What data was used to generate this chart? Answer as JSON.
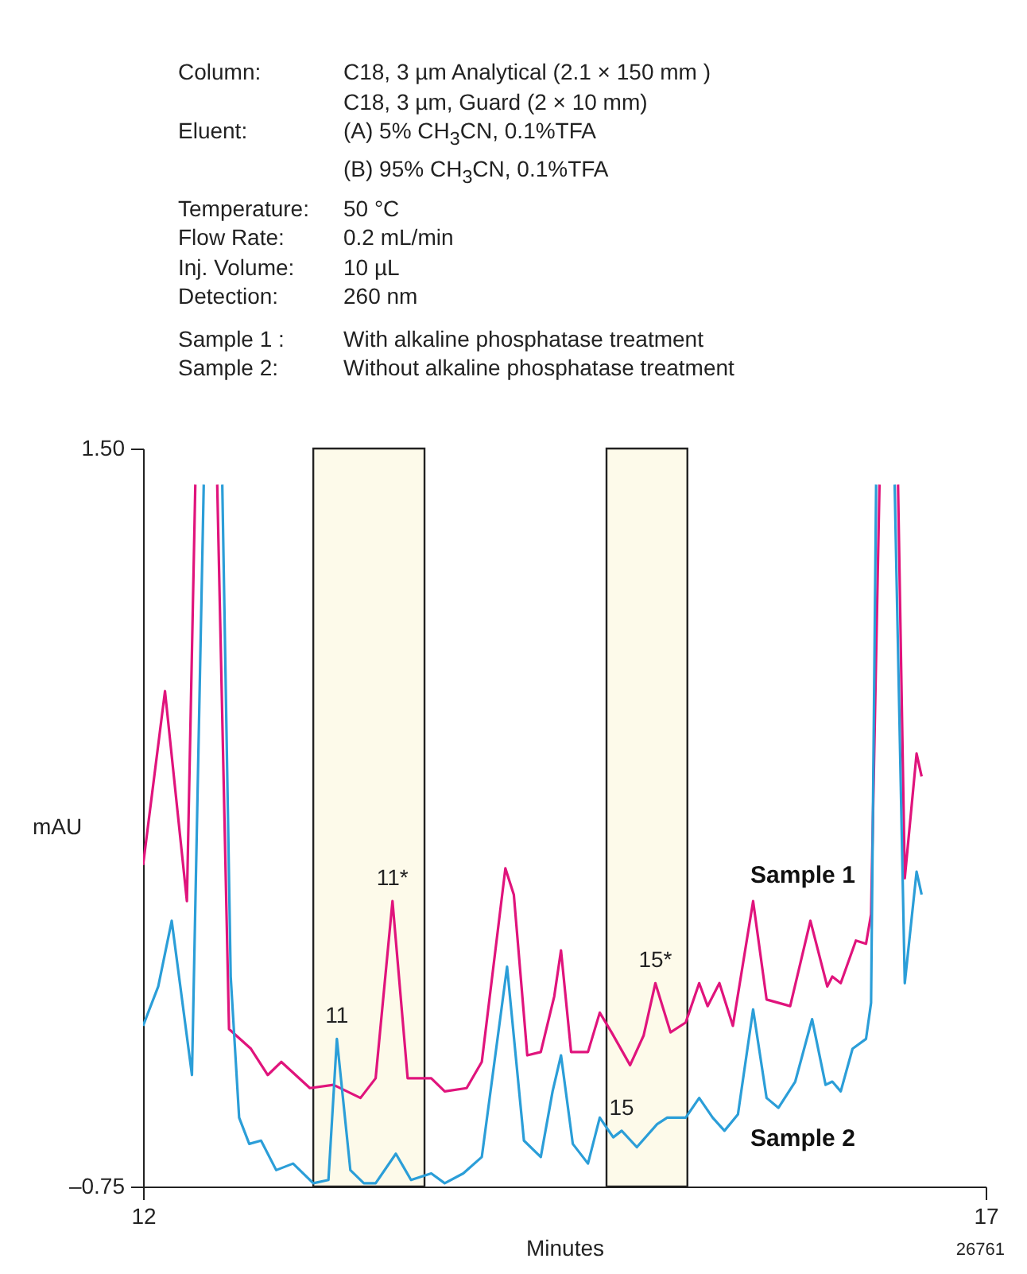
{
  "chart_data": {
    "type": "line",
    "xlabel": "Minutes",
    "ylabel": "mAU",
    "xlim": [
      12,
      17
    ],
    "xticks": [
      12,
      17
    ],
    "ylim": [
      -0.75,
      1.5
    ],
    "yticks": [
      {
        "value": -0.75,
        "label": "–0.75"
      },
      {
        "value": 1.5,
        "label": "1.50"
      }
    ],
    "grid": false,
    "legend": false,
    "marker": "none",
    "line_style": "solid",
    "series": [
      {
        "name": "Sample 1",
        "color": "#e0147c",
        "x": [
          12.0,
          12.13,
          12.26,
          12.31,
          12.37,
          12.44,
          12.51,
          12.64,
          12.74,
          12.82,
          12.99,
          13.13,
          13.29,
          13.38,
          13.48,
          13.57,
          13.71,
          13.79,
          13.92,
          14.01,
          14.15,
          14.2,
          14.28,
          14.36,
          14.44,
          14.48,
          14.54,
          14.64,
          14.71,
          14.78,
          14.89,
          14.97,
          15.04,
          15.13,
          15.22,
          15.3,
          15.35,
          15.42,
          15.5,
          15.62,
          15.7,
          15.84,
          15.96,
          16.06,
          16.09,
          16.14,
          16.23,
          16.29,
          16.32,
          16.37,
          16.42,
          16.48,
          16.52,
          16.59,
          16.62
        ],
        "values": [
          0.23,
          0.76,
          0.12,
          1.39,
          null,
          1.39,
          -0.27,
          -0.33,
          -0.41,
          -0.37,
          -0.45,
          -0.44,
          -0.48,
          -0.42,
          0.12,
          -0.42,
          -0.42,
          -0.46,
          -0.45,
          -0.37,
          0.22,
          0.14,
          -0.35,
          -0.34,
          -0.17,
          -0.03,
          -0.34,
          -0.34,
          -0.22,
          -0.28,
          -0.38,
          -0.29,
          -0.13,
          -0.28,
          -0.25,
          -0.13,
          -0.2,
          -0.13,
          -0.26,
          0.12,
          -0.18,
          -0.2,
          0.06,
          -0.14,
          -0.11,
          -0.13,
          0.0,
          -0.01,
          0.08,
          1.39,
          null,
          1.39,
          0.19,
          0.57,
          0.5
        ]
      },
      {
        "name": "Sample 2",
        "color": "#2b9ed8",
        "x": [
          12.0,
          12.09,
          12.17,
          12.29,
          12.36,
          12.41,
          12.47,
          12.52,
          12.57,
          12.63,
          12.7,
          12.79,
          12.89,
          13.01,
          13.1,
          13.15,
          13.23,
          13.31,
          13.38,
          13.5,
          13.59,
          13.71,
          13.79,
          13.9,
          14.01,
          14.16,
          14.26,
          14.36,
          14.43,
          14.48,
          14.55,
          14.64,
          14.71,
          14.79,
          14.84,
          14.93,
          15.05,
          15.11,
          15.22,
          15.3,
          15.38,
          15.45,
          15.53,
          15.62,
          15.7,
          15.77,
          15.87,
          15.97,
          16.05,
          16.09,
          16.14,
          16.21,
          16.29,
          16.32,
          16.35,
          16.41,
          16.46,
          16.52,
          16.59,
          16.62
        ],
        "values": [
          -0.26,
          -0.14,
          0.06,
          -0.41,
          1.39,
          null,
          1.39,
          -0.11,
          -0.54,
          -0.62,
          -0.61,
          -0.7,
          -0.68,
          -0.74,
          -0.73,
          -0.3,
          -0.7,
          -0.74,
          -0.74,
          -0.65,
          -0.73,
          -0.71,
          -0.74,
          -0.71,
          -0.66,
          -0.08,
          -0.61,
          -0.66,
          -0.46,
          -0.35,
          -0.62,
          -0.68,
          -0.54,
          -0.6,
          -0.58,
          -0.63,
          -0.56,
          -0.54,
          -0.54,
          -0.48,
          -0.54,
          -0.58,
          -0.53,
          -0.21,
          -0.48,
          -0.51,
          -0.43,
          -0.24,
          -0.44,
          -0.43,
          -0.46,
          -0.33,
          -0.3,
          -0.19,
          1.39,
          null,
          1.39,
          -0.13,
          0.21,
          0.14
        ]
      }
    ],
    "bands": [
      {
        "axis": "x",
        "from": 13.01,
        "to": 13.67,
        "color": "#fdfaea"
      },
      {
        "axis": "x",
        "from": 14.75,
        "to": 15.23,
        "color": "#fdfaea"
      }
    ],
    "annotations": [
      {
        "text": "11",
        "x": 13.15,
        "y": -0.3
      },
      {
        "text": "11*",
        "x": 13.48,
        "y": 0.12
      },
      {
        "text": "15",
        "x": 14.84,
        "y": -0.58
      },
      {
        "text": "15*",
        "x": 15.04,
        "y": -0.13
      },
      "Column: C18, 3 µm Analytical (2.1 × 150 mm )",
      "C18, 3 µm, Guard (2 × 10 mm)",
      "Eluent: (A) 5% CH$_{3}$CN, 0.1%TFA",
      "(B) 95% CH$_{3}$CN, 0.1%TFA",
      "Temperature: 50 °C",
      "Flow Rate: 0.2 mL/min",
      "Inj. Volume: 10 µL",
      "Detection: 260 nm",
      "Sample 1 : With alkaline phosphatase treatment",
      "Sample 2: Without alkaline phosphatase treatment",
      "26761"
    ]
  }
}
